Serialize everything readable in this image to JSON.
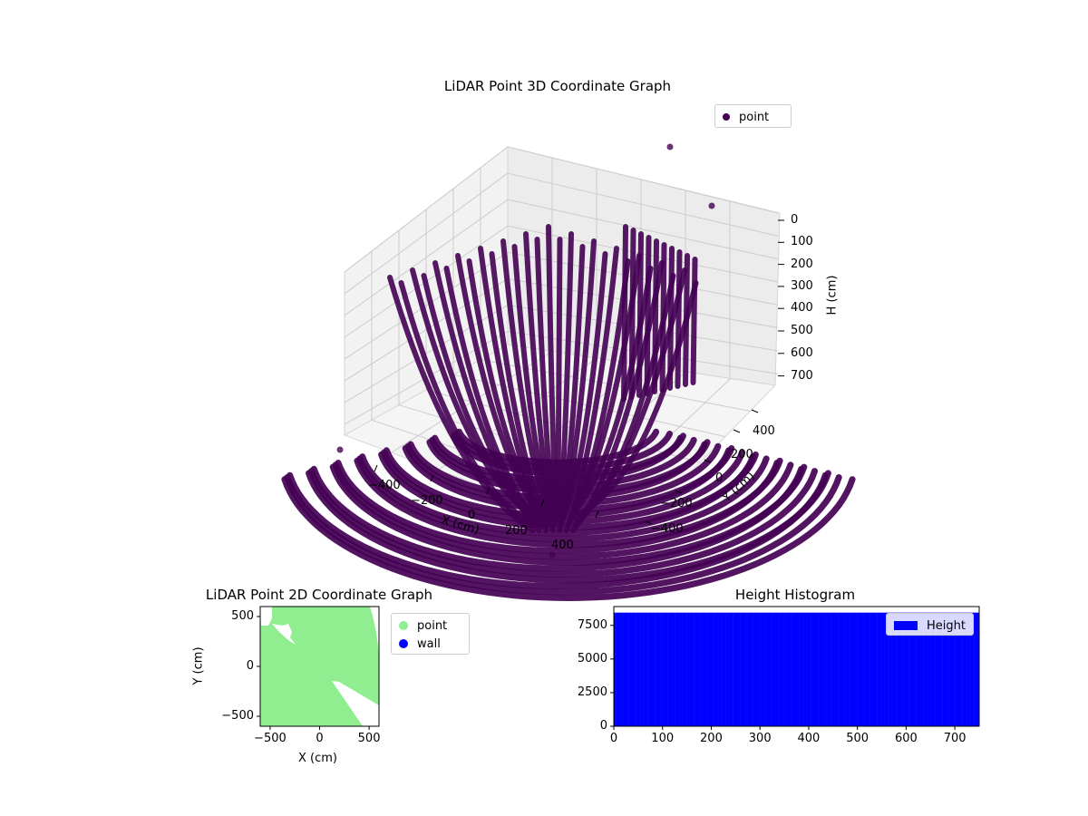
{
  "chart_data": [
    {
      "type": "scatter3d",
      "title": "LiDAR Point 3D Coordinate Graph",
      "xlabel": "X (cm)",
      "ylabel": "Y (cm)",
      "zlabel": "H (cm)",
      "xticks": [
        -400,
        -200,
        0,
        200,
        400
      ],
      "yticks": [
        -400,
        -200,
        0,
        200,
        400
      ],
      "zticks": [
        0,
        100,
        200,
        300,
        400,
        500,
        600,
        700
      ],
      "z_inverted": true,
      "xlim": [
        -600,
        600
      ],
      "ylim": [
        -600,
        600
      ],
      "zlim": [
        750,
        0
      ],
      "legend": [
        {
          "name": "point",
          "color": "#440154"
        }
      ],
      "legend_position": "top-right",
      "grid": true,
      "outliers": [
        {
          "x": 180,
          "y": 560,
          "h": -150
        },
        {
          "x": 420,
          "y": 450,
          "h": 20
        },
        {
          "x": -620,
          "y": -160,
          "h": 720
        },
        {
          "x": 420,
          "y": -600,
          "h": 700
        }
      ]
    },
    {
      "type": "scatter",
      "title": "LiDAR Point 2D Coordinate Graph",
      "xlabel": "X (cm)",
      "ylabel": "Y (cm)",
      "xticks": [
        -500,
        0,
        500
      ],
      "yticks": [
        -500,
        0,
        500
      ],
      "xlim": [
        -600,
        600
      ],
      "ylim": [
        -600,
        600
      ],
      "legend": [
        {
          "name": "point",
          "color": "#90ee90"
        },
        {
          "name": "wall",
          "color": "#0000ff"
        }
      ],
      "legend_position": "outside-right"
    },
    {
      "type": "histogram",
      "title": "Height Histogram",
      "xticks": [
        0,
        100,
        200,
        300,
        400,
        500,
        600,
        700
      ],
      "yticks": [
        "0",
        "2500",
        "5000",
        "7500"
      ],
      "ytick_values": [
        0,
        2500,
        5000,
        7500
      ],
      "xlim": [
        0,
        750
      ],
      "ylim": [
        0,
        8900
      ],
      "bins": {
        "start": 0,
        "end": 750,
        "count": 750
      },
      "bar_value": 8450,
      "legend": [
        {
          "name": "Height",
          "color": "#0000ff"
        }
      ],
      "legend_position": "top-right"
    }
  ]
}
